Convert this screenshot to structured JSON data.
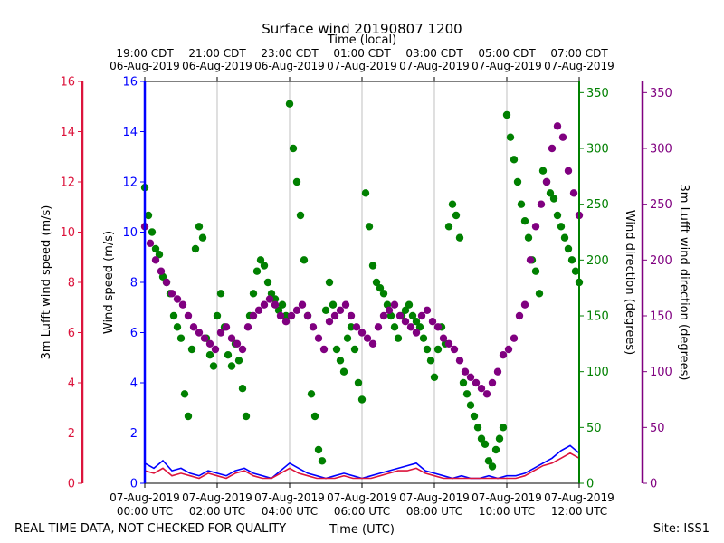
{
  "chart_data": {
    "type": "scatter",
    "title": "Surface wind 20190807 1200",
    "top_axis_label": "Time (local)",
    "bottom_axis_label": "Time (UTC)",
    "footer_left": "REAL TIME DATA, NOT CHECKED FOR QUALITY",
    "footer_right": "Site: ISS1",
    "x_range_hours": [
      0,
      12
    ],
    "bottom_ticks": [
      {
        "h": 0,
        "l1": "07-Aug-2019",
        "l2": "00:00 UTC"
      },
      {
        "h": 2,
        "l1": "07-Aug-2019",
        "l2": "02:00 UTC"
      },
      {
        "h": 4,
        "l1": "07-Aug-2019",
        "l2": "04:00 UTC"
      },
      {
        "h": 6,
        "l1": "07-Aug-2019",
        "l2": "06:00 UTC"
      },
      {
        "h": 8,
        "l1": "07-Aug-2019",
        "l2": "08:00 UTC"
      },
      {
        "h": 10,
        "l1": "07-Aug-2019",
        "l2": "10:00 UTC"
      },
      {
        "h": 12,
        "l1": "07-Aug-2019",
        "l2": "12:00 UTC"
      }
    ],
    "top_ticks": [
      {
        "h": 0,
        "l1": "19:00 CDT",
        "l2": "06-Aug-2019"
      },
      {
        "h": 2,
        "l1": "21:00 CDT",
        "l2": "06-Aug-2019"
      },
      {
        "h": 4,
        "l1": "23:00 CDT",
        "l2": "06-Aug-2019"
      },
      {
        "h": 6,
        "l1": "01:00 CDT",
        "l2": "07-Aug-2019"
      },
      {
        "h": 8,
        "l1": "03:00 CDT",
        "l2": "07-Aug-2019"
      },
      {
        "h": 10,
        "l1": "05:00 CDT",
        "l2": "07-Aug-2019"
      },
      {
        "h": 12,
        "l1": "07:00 CDT",
        "l2": "07-Aug-2019"
      }
    ],
    "axes": {
      "lufft_speed": {
        "label": "3m Lufft wind speed (m/s)",
        "color": "#dc143c",
        "ylim": [
          0,
          16
        ],
        "ticks": [
          "0",
          "2",
          "4",
          "6",
          "8",
          "10",
          "12",
          "14",
          "16"
        ]
      },
      "wind_speed": {
        "label": "Wind speed (m/s)",
        "color": "#0000ff",
        "ylim": [
          0,
          16
        ],
        "ticks": [
          "0",
          "2",
          "4",
          "6",
          "8",
          "10",
          "12",
          "14",
          "16"
        ]
      },
      "wind_direction": {
        "label": "Wind direction (degrees)",
        "color": "#008000",
        "ylim": [
          0,
          360
        ],
        "ticks": [
          "0",
          "50",
          "100",
          "150",
          "200",
          "250",
          "300",
          "350"
        ]
      },
      "lufft_direction": {
        "label": "3m Lufft wind direction (degrees)",
        "color": "#800080",
        "ylim": [
          0,
          360
        ],
        "ticks": [
          "0",
          "50",
          "100",
          "150",
          "200",
          "250",
          "300",
          "350"
        ]
      }
    },
    "series": [
      {
        "name": "Wind speed",
        "axis": "wind_speed",
        "kind": "line",
        "color": "#0000ff",
        "x": [
          0,
          0.25,
          0.5,
          0.75,
          1,
          1.25,
          1.5,
          1.75,
          2,
          2.25,
          2.5,
          2.75,
          3,
          3.25,
          3.5,
          3.75,
          4,
          4.25,
          4.5,
          4.75,
          5,
          5.25,
          5.5,
          5.75,
          6,
          6.25,
          6.5,
          6.75,
          7,
          7.25,
          7.5,
          7.75,
          8,
          8.25,
          8.5,
          8.75,
          9,
          9.25,
          9.5,
          9.75,
          10,
          10.25,
          10.5,
          10.75,
          11,
          11.25,
          11.5,
          11.75,
          12
        ],
        "y": [
          0.8,
          0.6,
          0.9,
          0.5,
          0.6,
          0.4,
          0.3,
          0.5,
          0.4,
          0.3,
          0.5,
          0.6,
          0.4,
          0.3,
          0.2,
          0.5,
          0.8,
          0.6,
          0.4,
          0.3,
          0.2,
          0.3,
          0.4,
          0.3,
          0.2,
          0.3,
          0.4,
          0.5,
          0.6,
          0.7,
          0.8,
          0.5,
          0.4,
          0.3,
          0.2,
          0.3,
          0.2,
          0.2,
          0.3,
          0.2,
          0.3,
          0.3,
          0.4,
          0.6,
          0.8,
          1.0,
          1.3,
          1.5,
          1.2
        ]
      },
      {
        "name": "3m Lufft wind speed",
        "axis": "lufft_speed",
        "kind": "line",
        "color": "#dc143c",
        "x": [
          0,
          0.25,
          0.5,
          0.75,
          1,
          1.25,
          1.5,
          1.75,
          2,
          2.25,
          2.5,
          2.75,
          3,
          3.25,
          3.5,
          3.75,
          4,
          4.25,
          4.5,
          4.75,
          5,
          5.25,
          5.5,
          5.75,
          6,
          6.25,
          6.5,
          6.75,
          7,
          7.25,
          7.5,
          7.75,
          8,
          8.25,
          8.5,
          8.75,
          9,
          9.25,
          9.5,
          9.75,
          10,
          10.25,
          10.5,
          10.75,
          11,
          11.25,
          11.5,
          11.75,
          12
        ],
        "y": [
          0.5,
          0.4,
          0.6,
          0.3,
          0.4,
          0.3,
          0.2,
          0.4,
          0.3,
          0.2,
          0.4,
          0.5,
          0.3,
          0.2,
          0.2,
          0.4,
          0.6,
          0.4,
          0.3,
          0.2,
          0.2,
          0.2,
          0.3,
          0.2,
          0.2,
          0.2,
          0.3,
          0.4,
          0.5,
          0.5,
          0.6,
          0.4,
          0.3,
          0.2,
          0.2,
          0.2,
          0.2,
          0.2,
          0.2,
          0.2,
          0.2,
          0.2,
          0.3,
          0.5,
          0.7,
          0.8,
          1.0,
          1.2,
          1.0
        ]
      },
      {
        "name": "Wind direction",
        "axis": "wind_direction",
        "kind": "scatter",
        "color": "#008000",
        "x": [
          0,
          0.1,
          0.2,
          0.3,
          0.4,
          0.5,
          0.6,
          0.7,
          0.8,
          0.9,
          1,
          1.1,
          1.2,
          1.3,
          1.4,
          1.5,
          1.6,
          1.7,
          1.8,
          1.9,
          2,
          2.1,
          2.2,
          2.3,
          2.4,
          2.5,
          2.6,
          2.7,
          2.8,
          2.9,
          3,
          3.1,
          3.2,
          3.3,
          3.4,
          3.5,
          3.6,
          3.7,
          3.8,
          3.9,
          4,
          4.1,
          4.2,
          4.3,
          4.4,
          4.5,
          4.6,
          4.7,
          4.8,
          4.9,
          5,
          5.1,
          5.2,
          5.3,
          5.4,
          5.5,
          5.6,
          5.7,
          5.8,
          5.9,
          6,
          6.1,
          6.2,
          6.3,
          6.4,
          6.5,
          6.6,
          6.7,
          6.8,
          6.9,
          7,
          7.1,
          7.2,
          7.3,
          7.4,
          7.5,
          7.6,
          7.7,
          7.8,
          7.9,
          8,
          8.1,
          8.2,
          8.3,
          8.4,
          8.5,
          8.6,
          8.7,
          8.8,
          8.9,
          9,
          9.1,
          9.2,
          9.3,
          9.4,
          9.5,
          9.6,
          9.7,
          9.8,
          9.9,
          10,
          10.1,
          10.2,
          10.3,
          10.4,
          10.5,
          10.6,
          10.7,
          10.8,
          10.9,
          11,
          11.1,
          11.2,
          11.3,
          11.4,
          11.5,
          11.6,
          11.7,
          11.8,
          11.9,
          12
        ],
        "y": [
          265,
          240,
          225,
          210,
          205,
          185,
          180,
          170,
          150,
          140,
          130,
          80,
          60,
          120,
          210,
          230,
          220,
          130,
          115,
          105,
          150,
          170,
          140,
          115,
          105,
          125,
          110,
          85,
          60,
          150,
          170,
          190,
          200,
          195,
          180,
          170,
          165,
          155,
          160,
          150,
          340,
          300,
          270,
          240,
          200,
          150,
          80,
          60,
          30,
          20,
          155,
          180,
          160,
          120,
          110,
          100,
          130,
          140,
          120,
          90,
          75,
          260,
          230,
          195,
          180,
          175,
          170,
          160,
          150,
          140,
          130,
          150,
          155,
          160,
          150,
          145,
          140,
          130,
          120,
          110,
          95,
          120,
          140,
          125,
          230,
          250,
          240,
          220,
          90,
          80,
          70,
          60,
          50,
          40,
          35,
          20,
          15,
          30,
          40,
          50,
          330,
          310,
          290,
          270,
          250,
          235,
          220,
          200,
          190,
          170,
          280,
          270,
          260,
          255,
          240,
          230,
          220,
          210,
          200,
          190,
          180
        ]
      },
      {
        "name": "3m Lufft wind direction",
        "axis": "lufft_direction",
        "kind": "scatter",
        "color": "#800080",
        "x": [
          0,
          0.15,
          0.3,
          0.45,
          0.6,
          0.75,
          0.9,
          1.05,
          1.2,
          1.35,
          1.5,
          1.65,
          1.8,
          1.95,
          2.1,
          2.25,
          2.4,
          2.55,
          2.7,
          2.85,
          3,
          3.15,
          3.3,
          3.45,
          3.6,
          3.75,
          3.9,
          4.05,
          4.2,
          4.35,
          4.5,
          4.65,
          4.8,
          4.95,
          5.1,
          5.25,
          5.4,
          5.55,
          5.7,
          5.85,
          6,
          6.15,
          6.3,
          6.45,
          6.6,
          6.75,
          6.9,
          7.05,
          7.2,
          7.35,
          7.5,
          7.65,
          7.8,
          7.95,
          8.1,
          8.25,
          8.4,
          8.55,
          8.7,
          8.85,
          9,
          9.15,
          9.3,
          9.45,
          9.6,
          9.75,
          9.9,
          10.05,
          10.2,
          10.35,
          10.5,
          10.65,
          10.8,
          10.95,
          11.1,
          11.25,
          11.4,
          11.55,
          11.7,
          11.85,
          12
        ],
        "y": [
          230,
          215,
          200,
          190,
          180,
          170,
          165,
          160,
          150,
          140,
          135,
          130,
          125,
          120,
          135,
          140,
          130,
          125,
          120,
          140,
          150,
          155,
          160,
          165,
          160,
          150,
          145,
          150,
          155,
          160,
          150,
          140,
          130,
          120,
          145,
          150,
          155,
          160,
          150,
          140,
          135,
          130,
          125,
          140,
          150,
          155,
          160,
          150,
          145,
          140,
          135,
          150,
          155,
          145,
          140,
          130,
          125,
          120,
          110,
          100,
          95,
          90,
          85,
          80,
          90,
          100,
          115,
          120,
          130,
          150,
          160,
          200,
          230,
          250,
          270,
          300,
          320,
          310,
          280,
          260,
          240
        ]
      }
    ]
  }
}
